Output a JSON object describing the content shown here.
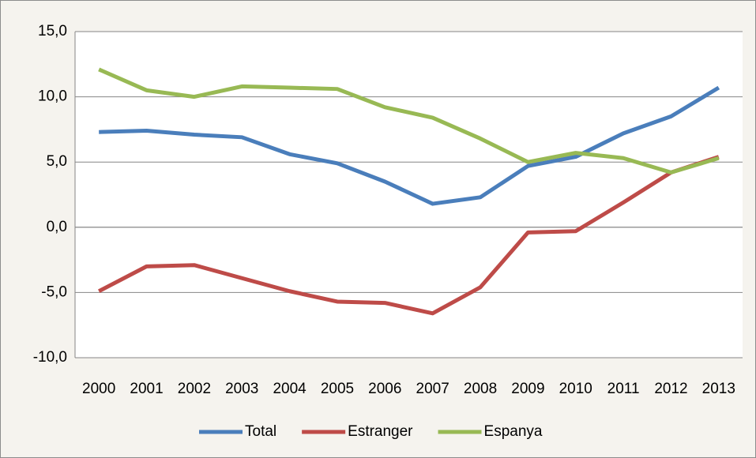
{
  "chart_data": {
    "type": "line",
    "categories": [
      "2000",
      "2001",
      "2002",
      "2003",
      "2004",
      "2005",
      "2006",
      "2007",
      "2008",
      "2009",
      "2010",
      "2011",
      "2012",
      "2013"
    ],
    "series": [
      {
        "name": "Total",
        "color": "#4a7ebb",
        "values": [
          7.3,
          7.4,
          7.1,
          6.9,
          5.6,
          4.9,
          3.5,
          1.8,
          2.3,
          4.7,
          5.4,
          7.2,
          8.5,
          10.7
        ]
      },
      {
        "name": "Estranger",
        "color": "#be4b48",
        "values": [
          -4.9,
          -3.0,
          -2.9,
          -3.9,
          -4.9,
          -5.7,
          -5.8,
          -6.6,
          -4.6,
          -0.4,
          -0.3,
          1.9,
          4.2,
          5.4
        ]
      },
      {
        "name": "Espanya",
        "color": "#98b954",
        "values": [
          12.1,
          10.5,
          10.0,
          10.8,
          10.7,
          10.6,
          9.2,
          8.4,
          6.8,
          5.0,
          5.7,
          5.3,
          4.2,
          5.3
        ]
      }
    ],
    "ylim": [
      -10,
      15
    ],
    "yticks": [
      {
        "value": -10,
        "label": "-10,0"
      },
      {
        "value": -5,
        "label": "-5,0"
      },
      {
        "value": 0,
        "label": "0,0"
      },
      {
        "value": 5,
        "label": "5,0"
      },
      {
        "value": 10,
        "label": "10,0"
      },
      {
        "value": 15,
        "label": "15,0"
      }
    ],
    "grid": true,
    "legend": "bottom"
  }
}
